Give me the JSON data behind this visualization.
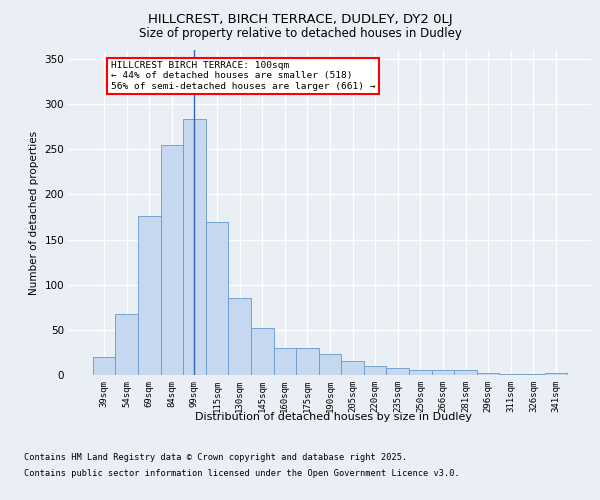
{
  "title1": "HILLCREST, BIRCH TERRACE, DUDLEY, DY2 0LJ",
  "title2": "Size of property relative to detached houses in Dudley",
  "xlabel": "Distribution of detached houses by size in Dudley",
  "ylabel": "Number of detached properties",
  "categories": [
    "39sqm",
    "54sqm",
    "69sqm",
    "84sqm",
    "99sqm",
    "115sqm",
    "130sqm",
    "145sqm",
    "160sqm",
    "175sqm",
    "190sqm",
    "205sqm",
    "220sqm",
    "235sqm",
    "250sqm",
    "266sqm",
    "281sqm",
    "296sqm",
    "311sqm",
    "326sqm",
    "341sqm"
  ],
  "values": [
    20,
    68,
    176,
    255,
    284,
    170,
    85,
    52,
    30,
    30,
    23,
    15,
    10,
    8,
    5,
    5,
    5,
    2,
    1,
    1,
    2
  ],
  "bar_color": "#c5d8f0",
  "bar_edge_color": "#6699cc",
  "marker_bar_index": 4,
  "marker_color": "#3366aa",
  "annotation_text": "HILLCREST BIRCH TERRACE: 100sqm\n← 44% of detached houses are smaller (518)\n56% of semi-detached houses are larger (661) →",
  "annotation_box_color": "white",
  "annotation_box_edge_color": "red",
  "ylim": [
    0,
    360
  ],
  "yticks": [
    0,
    50,
    100,
    150,
    200,
    250,
    300,
    350
  ],
  "bg_color": "#eaeef5",
  "grid_color": "white",
  "footer_line1": "Contains HM Land Registry data © Crown copyright and database right 2025.",
  "footer_line2": "Contains public sector information licensed under the Open Government Licence v3.0."
}
